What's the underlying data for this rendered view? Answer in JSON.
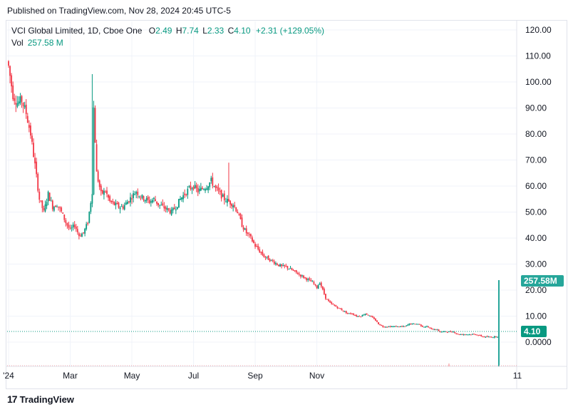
{
  "published": "Published on TradingView.com, Nov 28, 2024 20:45 UTC-5",
  "legend": {
    "symbol": "VCI Global Limited, 1D, Cboe One",
    "o_label": "O",
    "o": "2.49",
    "h_label": "H",
    "h": "7.74",
    "l_label": "L",
    "l": "2.33",
    "c_label": "C",
    "c": "4.10",
    "change": "+2.31 (+129.05%)",
    "vol_label": "Vol",
    "vol": "257.58 M"
  },
  "brand": {
    "name": "TradingView",
    "logo": "17"
  },
  "colors": {
    "up": "#089981",
    "down": "#f23645",
    "grid": "#f0f3fa",
    "text": "#131722"
  },
  "chart_data": {
    "type": "candlestick",
    "y_ticks": [
      "120.00",
      "110.00",
      "100.00",
      "90.00",
      "80.00",
      "70.00",
      "60.00",
      "50.00",
      "40.00",
      "30.00",
      "20.00",
      "10.00",
      "0.0000"
    ],
    "ylim": [
      -7,
      122
    ],
    "x_ticks": [
      "'24",
      "Mar",
      "May",
      "Jul",
      "Sep",
      "Nov",
      "11"
    ],
    "last_price_label": "4.10",
    "volume_label": "257.58M",
    "series": [
      {
        "name": "VCI Global Limited",
        "close_path": [
          [
            0,
            106
          ],
          [
            3,
            95
          ],
          [
            6,
            92
          ],
          [
            9,
            93
          ],
          [
            12,
            88
          ],
          [
            15,
            80
          ],
          [
            18,
            68
          ],
          [
            21,
            55
          ],
          [
            24,
            50
          ],
          [
            27,
            57
          ],
          [
            30,
            52
          ],
          [
            33,
            53
          ],
          [
            36,
            50
          ],
          [
            39,
            46
          ],
          [
            42,
            43
          ],
          [
            45,
            45
          ],
          [
            48,
            41
          ],
          [
            51,
            42
          ],
          [
            54,
            46
          ],
          [
            57,
            58
          ],
          [
            58,
            90
          ],
          [
            60,
            65
          ],
          [
            63,
            57
          ],
          [
            66,
            58
          ],
          [
            69,
            54
          ],
          [
            72,
            53
          ],
          [
            75,
            52
          ],
          [
            78,
            52
          ],
          [
            81,
            54
          ],
          [
            84,
            56
          ],
          [
            87,
            58
          ],
          [
            90,
            56
          ],
          [
            93,
            55
          ],
          [
            96,
            54
          ],
          [
            99,
            55
          ],
          [
            102,
            53
          ],
          [
            105,
            52
          ],
          [
            108,
            51
          ],
          [
            111,
            50
          ],
          [
            114,
            52
          ],
          [
            117,
            55
          ],
          [
            120,
            57
          ],
          [
            123,
            59
          ],
          [
            126,
            60
          ],
          [
            129,
            58
          ],
          [
            132,
            59
          ],
          [
            135,
            60
          ],
          [
            138,
            62
          ],
          [
            141,
            59
          ],
          [
            144,
            57
          ],
          [
            147,
            55
          ],
          [
            150,
            54
          ],
          [
            153,
            53
          ],
          [
            156,
            50
          ],
          [
            159,
            45
          ],
          [
            162,
            42
          ],
          [
            165,
            40
          ],
          [
            168,
            37
          ],
          [
            171,
            35
          ],
          [
            174,
            33
          ],
          [
            177,
            32
          ],
          [
            180,
            31
          ],
          [
            183,
            30
          ],
          [
            186,
            29
          ],
          [
            189,
            29
          ],
          [
            192,
            28
          ],
          [
            195,
            27
          ],
          [
            198,
            26
          ],
          [
            201,
            25
          ],
          [
            204,
            24
          ],
          [
            207,
            23
          ],
          [
            210,
            21
          ],
          [
            212,
            23
          ],
          [
            214,
            20
          ],
          [
            216,
            17
          ],
          [
            219,
            15
          ],
          [
            222,
            14
          ],
          [
            225,
            13
          ],
          [
            228,
            12
          ],
          [
            231,
            11
          ],
          [
            234,
            11
          ],
          [
            237,
            10
          ],
          [
            240,
            10
          ],
          [
            243,
            11
          ],
          [
            246,
            10
          ],
          [
            249,
            9
          ],
          [
            252,
            7
          ],
          [
            255,
            6
          ],
          [
            258,
            6
          ],
          [
            261,
            6
          ],
          [
            264,
            6
          ],
          [
            267,
            6
          ],
          [
            270,
            6
          ],
          [
            273,
            7
          ],
          [
            276,
            7
          ],
          [
            279,
            7
          ],
          [
            282,
            6
          ],
          [
            285,
            6
          ],
          [
            288,
            5
          ],
          [
            291,
            5
          ],
          [
            294,
            4
          ],
          [
            297,
            4
          ],
          [
            300,
            4
          ],
          [
            303,
            4
          ],
          [
            306,
            3
          ],
          [
            309,
            3
          ],
          [
            312,
            3
          ],
          [
            315,
            3
          ],
          [
            318,
            3
          ],
          [
            321,
            2.5
          ],
          [
            324,
            2
          ],
          [
            327,
            2
          ],
          [
            330,
            2
          ],
          [
            333,
            2.2
          ],
          [
            334,
            4.1
          ]
        ]
      }
    ],
    "volume_spike": {
      "day": 334,
      "value_m": 257.58
    }
  }
}
